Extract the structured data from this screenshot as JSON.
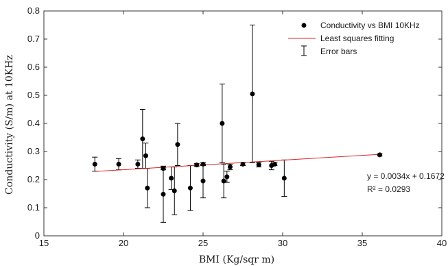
{
  "chart_data": {
    "type": "scatter",
    "xlabel": "BMI (Kg/sqr m)",
    "ylabel": "Conductivity (S/m) at 10KHz",
    "xlim": [
      15,
      40
    ],
    "ylim": [
      0,
      0.8
    ],
    "xticks": [
      15,
      20,
      25,
      30,
      35,
      40
    ],
    "yticks": [
      0,
      0.1,
      0.2,
      0.3,
      0.4,
      0.5,
      0.6,
      0.7,
      0.8
    ],
    "xtick_labels": [
      "15",
      "20",
      "25",
      "30",
      "35",
      "40"
    ],
    "ytick_labels": [
      "0",
      "0.1",
      "0.2",
      "0.3",
      "0.4",
      "0.5",
      "0.6",
      "0.7",
      "0.8"
    ],
    "grid": false,
    "legend_position": "top-right",
    "legend": {
      "points": "Conductivity vs BMI 10KHz",
      "fit": "Least squares fitting",
      "errorbars": "Error bars"
    },
    "annotations": {
      "equation": "y = 0.0034x + 0.1672",
      "r_squared": "R² = 0.0293"
    },
    "series": [
      {
        "name": "Conductivity vs BMI 10KHz",
        "points": [
          {
            "x": 18.2,
            "y": 0.255,
            "err": 0.025
          },
          {
            "x": 19.7,
            "y": 0.255,
            "err": 0.02
          },
          {
            "x": 20.9,
            "y": 0.255,
            "err": 0.015
          },
          {
            "x": 21.2,
            "y": 0.345,
            "err": 0.105
          },
          {
            "x": 21.4,
            "y": 0.285,
            "err": 0.045
          },
          {
            "x": 21.5,
            "y": 0.17,
            "err": 0.07
          },
          {
            "x": 22.5,
            "y": 0.148,
            "err": 0.1
          },
          {
            "x": 22.5,
            "y": 0.24,
            "err": 0.005
          },
          {
            "x": 23.0,
            "y": 0.205,
            "err": 0.04
          },
          {
            "x": 23.2,
            "y": 0.16,
            "err": 0.085
          },
          {
            "x": 23.4,
            "y": 0.325,
            "err": 0.075
          },
          {
            "x": 24.2,
            "y": 0.17,
            "err": 0.08
          },
          {
            "x": 24.6,
            "y": 0.252,
            "err": 0.005
          },
          {
            "x": 25.0,
            "y": 0.255,
            "err": 0.005
          },
          {
            "x": 25.0,
            "y": 0.195,
            "err": 0.06
          },
          {
            "x": 26.2,
            "y": 0.4,
            "err": 0.14
          },
          {
            "x": 26.3,
            "y": 0.195,
            "err": 0.06
          },
          {
            "x": 26.5,
            "y": 0.21,
            "err": 0.02
          },
          {
            "x": 26.7,
            "y": 0.245,
            "err": 0.01
          },
          {
            "x": 27.5,
            "y": 0.255,
            "err": 0.005
          },
          {
            "x": 28.1,
            "y": 0.505,
            "err": 0.245
          },
          {
            "x": 28.5,
            "y": 0.253,
            "err": 0.008
          },
          {
            "x": 29.3,
            "y": 0.25,
            "err": 0.015
          },
          {
            "x": 29.5,
            "y": 0.255,
            "err": 0.005
          },
          {
            "x": 30.1,
            "y": 0.205,
            "err": 0.065
          },
          {
            "x": 36.1,
            "y": 0.288,
            "err": 0.004
          }
        ]
      }
    ],
    "fit_line": {
      "slope": 0.0034,
      "intercept": 0.1672,
      "x_range": [
        18.2,
        36.1
      ]
    },
    "colors": {
      "points": "#000000",
      "fit": "#d62728",
      "errorbars": "#000000"
    }
  }
}
